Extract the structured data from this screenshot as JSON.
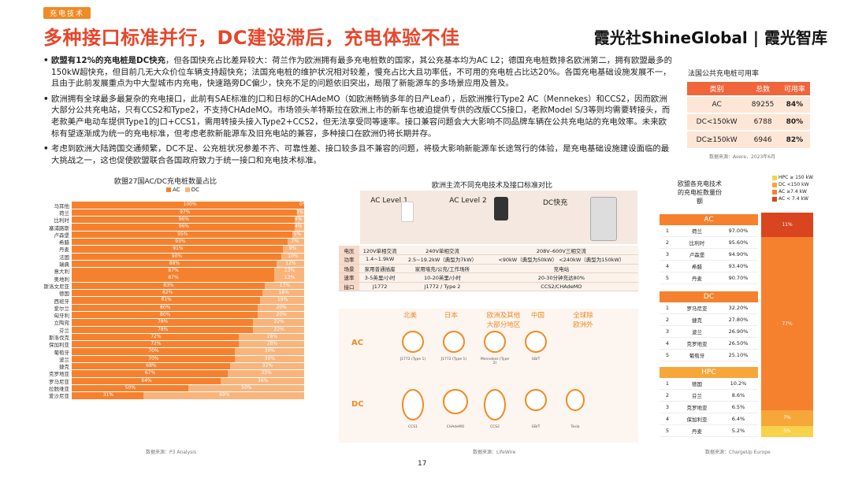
{
  "section_tag": "充电技术",
  "title": "多种接口标准并行，DC建设滞后，充电体验不佳",
  "logo": "霞光社ShineGlobal | 霞光智库",
  "bullets": [
    {
      "bold": "欧盟有12%的充电桩是DC快充",
      "text": "，但各国快充占比差异较大：荷兰作为欧洲拥有最多充电桩数的国家，其公充基本均为AC L2；德国充电桩数排名欧洲第二，拥有欧盟最多的150kW超快充，但目前几无大众价位车辆支持超快充；法国充电桩的维护状况相对较差，慢充占比大且功率低，不可用的充电桩占比达20%。各国充电基础设施发展不一，且由于此前发展重点为中大型城市内充电，快速路旁DC偏少，快充不足的问题依旧突出，局限了新能源车的多场景应用及普及。"
    },
    {
      "bold": "",
      "text": "欧洲拥有全球最多最复杂的充电接口，此前有SAE标准的J口和日标的CHAdeMO（如欧洲畅销多年的日产Leaf），后欧洲推行Type2 AC（Mennekes）和CCS2，因而欧洲大部分公共充电站，只有CCS2和Type2，不支持CHAdeMO。市场领头羊特斯拉在欧洲上市的新车也被迫提供专供的改版CCS接口，老款Model S/3等则均需要转接头，而老款美产电动车提供Type1的J口+CCS1，需用转接头接入Type2+CCS2，但无法享受同等速率。接口兼容问题会大大影响不同品牌车辆在公共充电站的充电效率。未来欧标有望逐渐成为统一的充电标准，但考虑老款新能源车及旧充电站的兼容，多种接口在欧洲仍将长期并存。"
    },
    {
      "bold": "",
      "text": "考虑到欧洲大陆跨国交通频繁，DC不足、公充桩状况参差不齐、可靠性差、接口较多且不兼容的问题，将极大影响新能源车长途驾行的体验，是充电基础设施建设面临的最大挑战之一，这也促使欧盟联合各国政府致力于统一接口和充电技术标准。"
    }
  ],
  "france_table": {
    "title": "法国公共充电桩可用率",
    "headers": [
      "类别",
      "总数",
      "可用率"
    ],
    "rows": [
      [
        "AC",
        "89255",
        "84%"
      ],
      [
        "DC<150kW",
        "6788",
        "80%"
      ],
      [
        "DC≥150kW",
        "6946",
        "82%"
      ]
    ],
    "source": "数据来源：Avere，2023年6月"
  },
  "chart_data": [
    {
      "type": "bar",
      "title": "欧盟27国AC/DC充电桩数量占比",
      "series": [
        {
          "name": "AC"
        },
        {
          "name": "DC"
        }
      ],
      "categories": [
        "马耳他",
        "荷兰",
        "比利时",
        "塞浦路斯",
        "卢森堡",
        "希腊",
        "丹麦",
        "法国",
        "瑞典",
        "意大利",
        "奥地利",
        "斯洛文尼亚",
        "德国",
        "西班牙",
        "爱尔兰",
        "匈牙利",
        "立陶宛",
        "芬兰",
        "斯洛伐克",
        "保加利亚",
        "葡萄牙",
        "波兰",
        "捷克",
        "克罗地亚",
        "罗马尼亚",
        "拉脱维亚",
        "爱沙尼亚"
      ],
      "ac": [
        100,
        97,
        96,
        96,
        95,
        93,
        91,
        90,
        88,
        87,
        87,
        83,
        82,
        81,
        80,
        80,
        78,
        78,
        72,
        72,
        70,
        70,
        68,
        67,
        64,
        50,
        31
      ],
      "dc": [
        0,
        3,
        4,
        4,
        5,
        7,
        9,
        10,
        12,
        13,
        13,
        17,
        18,
        19,
        20,
        20,
        22,
        22,
        28,
        28,
        30,
        30,
        32,
        33,
        36,
        50,
        69
      ],
      "source": "数据来源：P3 Analysis"
    },
    {
      "type": "bar",
      "title": "欧盟各充电技术的充电桩数量份额",
      "series": [
        {
          "name": "HPC ≥ 150 kW",
          "value": 5,
          "color": "#f8d24a"
        },
        {
          "name": "DC <150 kW",
          "value": 7,
          "color": "#f7a63a"
        },
        {
          "name": "AC ≥7.4 kW",
          "value": 77,
          "color": "#f5812e"
        },
        {
          "name": "AC < 7.4 kW",
          "value": 11,
          "color": "#d9451e"
        }
      ]
    }
  ],
  "comparison": {
    "title": "欧洲主流不同充电技术及接口标准对比",
    "cols": [
      "AC Level 1",
      "AC Level 2",
      "DC快充"
    ],
    "rows": [
      [
        "电压",
        "120V单相交流",
        "240V单相交流",
        "208V–600V三相交流"
      ],
      [
        "功率",
        "1.4~1.9kW",
        "2.5~19.2kW（典型为7kW）",
        "<90kW（典型为50kW）  <240kW（典型为150kW）"
      ],
      [
        "场景",
        "家用普通插座",
        "家用墙充/公充/工作场所",
        "充电站"
      ],
      [
        "速率",
        "3-5英里/小时",
        "10-20英里/小时",
        "20-30分钟充达80%"
      ],
      [
        "接口",
        "J1772",
        "J1772 / Type 2",
        "CCS2/CHAdeMO"
      ]
    ],
    "regions": [
      "北美",
      "日本",
      "欧洲及其他大部分地区",
      "中国",
      "全球除欧洲外"
    ],
    "ac_plugs": [
      "J1772 (Type 1)",
      "J1772 (Type 1)",
      "Mennekes (Type 2)",
      "GB/T"
    ],
    "dc_plugs": [
      "CCS1",
      "CHAdeMO",
      "CCS2",
      "GB/T",
      "Tesla"
    ],
    "source": "数据来源：LifeWire"
  },
  "ranking": {
    "title": "欧盟各充电技术的充电桩数量份额",
    "groups": [
      {
        "name": "AC",
        "rows": [
          [
            "1",
            "荷兰",
            "97.00%"
          ],
          [
            "2",
            "比利时",
            "95.60%"
          ],
          [
            "3",
            "卢森堡",
            "94.90%"
          ],
          [
            "4",
            "希腊",
            "93.40%"
          ],
          [
            "5",
            "丹麦",
            "90.70%"
          ]
        ]
      },
      {
        "name": "DC",
        "rows": [
          [
            "1",
            "罗马尼亚",
            "32.20%"
          ],
          [
            "2",
            "捷克",
            "27.80%"
          ],
          [
            "3",
            "波兰",
            "26.90%"
          ],
          [
            "4",
            "克罗地亚",
            "26.50%"
          ],
          [
            "5",
            "葡萄牙",
            "25.10%"
          ]
        ]
      },
      {
        "name": "HPC",
        "rows": [
          [
            "1",
            "德国",
            "10.2%"
          ],
          [
            "2",
            "芬兰",
            "8.6%"
          ],
          [
            "3",
            "克罗地亚",
            "6.5%"
          ],
          [
            "4",
            "保加利亚",
            "6.4%"
          ],
          [
            "5",
            "丹麦",
            "5.2%"
          ]
        ]
      }
    ],
    "source": "数据来源：ChargeUp Europe"
  },
  "page_number": "17"
}
